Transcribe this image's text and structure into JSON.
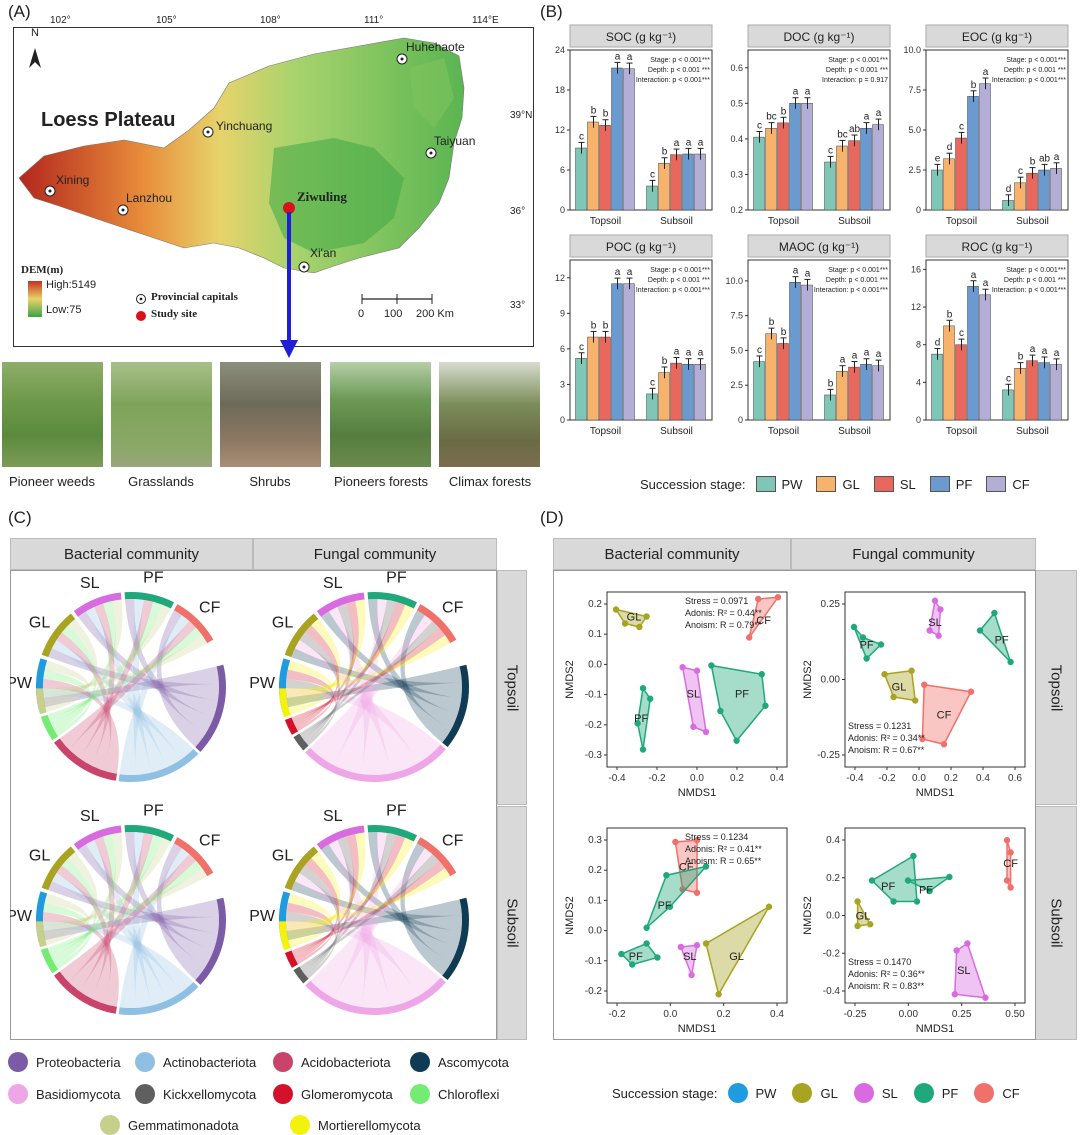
{
  "panels": {
    "a": "(A)",
    "b": "(B)",
    "c": "(C)",
    "d": "(D)"
  },
  "map": {
    "title": "Loess Plateau",
    "lon_ticks": [
      "102°",
      "105°",
      "108°",
      "111°",
      "114°E"
    ],
    "lat_ticks": [
      "39°N",
      "36°",
      "33°"
    ],
    "cities": [
      "Huhehaote",
      "Yinchuang",
      "Taiyuan",
      "Xining",
      "Lanzhou",
      "Xi'an"
    ],
    "study_site": "Ziwuling",
    "dem_title": "DEM(m)",
    "dem_high": "High:5149",
    "dem_low": "Low:75",
    "legend_capitals": "Provincial capitals",
    "legend_site": "Study site",
    "scale": [
      "0",
      "100",
      "200 Km"
    ],
    "north": "N"
  },
  "photos": [
    "Pioneer weeds",
    "Grasslands",
    "Shrubs",
    "Pioneers forests",
    "Climax forests"
  ],
  "colors": {
    "PW": "#7fc6b6",
    "GL": "#f7b36b",
    "SL": "#e8685d",
    "PF": "#6b9ad0",
    "CF": "#b3aed6"
  },
  "chart_data": [
    {
      "type": "bar",
      "title": "SOC (g kg⁻¹)",
      "categories": [
        "Topsoil",
        "Subsoil"
      ],
      "ylim": [
        0,
        24
      ],
      "yticks": [
        "0",
        "6",
        "12",
        "18",
        "24"
      ],
      "series": [
        {
          "name": "PW",
          "values": [
            9.3,
            3.6
          ]
        },
        {
          "name": "GL",
          "values": [
            13.2,
            7.0
          ]
        },
        {
          "name": "SL",
          "values": [
            12.7,
            8.3
          ]
        },
        {
          "name": "PF",
          "values": [
            21.3,
            8.4
          ]
        },
        {
          "name": "CF",
          "values": [
            21.2,
            8.4
          ]
        }
      ],
      "letters": [
        [
          "c",
          "b",
          "b",
          "a",
          "a"
        ],
        [
          "c",
          "b",
          "a",
          "a",
          "a"
        ]
      ],
      "stats": [
        "Stage: p < 0.001***",
        "Depth: p < 0.001 ***",
        "Interaction: p < 0.001***"
      ]
    },
    {
      "type": "bar",
      "title": "DOC (g kg⁻¹)",
      "categories": [
        "Topsoil",
        "Subsoil"
      ],
      "ylim": [
        0.2,
        0.65
      ],
      "yticks": [
        "0.2",
        "0.3",
        "0.4",
        "0.5",
        "0.6"
      ],
      "series": [
        {
          "name": "PW",
          "values": [
            0.405,
            0.335
          ]
        },
        {
          "name": "GL",
          "values": [
            0.43,
            0.38
          ]
        },
        {
          "name": "SL",
          "values": [
            0.445,
            0.395
          ]
        },
        {
          "name": "PF",
          "values": [
            0.5,
            0.43
          ]
        },
        {
          "name": "CF",
          "values": [
            0.5,
            0.44
          ]
        }
      ],
      "letters": [
        [
          "c",
          "bc",
          "b",
          "a",
          "a"
        ],
        [
          "c",
          "bc",
          "ab",
          "a",
          "a"
        ]
      ],
      "stats": [
        "Stage: p < 0.001***",
        "Depth: p < 0.001 ***",
        "Interaction: p = 0.917"
      ]
    },
    {
      "type": "bar",
      "title": "EOC (g kg⁻¹)",
      "categories": [
        "Topsoil",
        "Subsoil"
      ],
      "ylim": [
        0,
        10
      ],
      "yticks": [
        "0",
        "2.5",
        "5.0",
        "7.5",
        "10.0"
      ],
      "series": [
        {
          "name": "PW",
          "values": [
            2.5,
            0.6
          ]
        },
        {
          "name": "GL",
          "values": [
            3.2,
            1.7
          ]
        },
        {
          "name": "SL",
          "values": [
            4.5,
            2.3
          ]
        },
        {
          "name": "PF",
          "values": [
            7.1,
            2.5
          ]
        },
        {
          "name": "CF",
          "values": [
            7.9,
            2.6
          ]
        }
      ],
      "letters": [
        [
          "e",
          "d",
          "c",
          "b",
          "a"
        ],
        [
          "d",
          "c",
          "b",
          "ab",
          "a"
        ]
      ],
      "stats": [
        "Stage: p < 0.001***",
        "Depth: p < 0.001 ***",
        "Interaction: p < 0.001***"
      ]
    },
    {
      "type": "bar",
      "title": "POC (g kg⁻¹)",
      "categories": [
        "Topsoil",
        "Subsoil"
      ],
      "ylim": [
        0,
        13.5
      ],
      "yticks": [
        "0",
        "3",
        "6",
        "9",
        "12"
      ],
      "series": [
        {
          "name": "PW",
          "values": [
            5.2,
            2.2
          ]
        },
        {
          "name": "GL",
          "values": [
            7.0,
            4.0
          ]
        },
        {
          "name": "SL",
          "values": [
            7.0,
            4.8
          ]
        },
        {
          "name": "PF",
          "values": [
            11.5,
            4.7
          ]
        },
        {
          "name": "CF",
          "values": [
            11.5,
            4.7
          ]
        }
      ],
      "letters": [
        [
          "c",
          "b",
          "b",
          "a",
          "a"
        ],
        [
          "c",
          "b",
          "a",
          "a",
          "a"
        ]
      ],
      "stats": [
        "Stage: p < 0.001***",
        "Depth: p < 0.001 ***",
        "Interaction: p < 0.001***"
      ]
    },
    {
      "type": "bar",
      "title": "MAOC (g kg⁻¹)",
      "categories": [
        "Topsoil",
        "Subsoil"
      ],
      "ylim": [
        0,
        11.5
      ],
      "yticks": [
        "0",
        "2.5",
        "5.0",
        "7.5",
        "10.0"
      ],
      "series": [
        {
          "name": "PW",
          "values": [
            4.2,
            1.8
          ]
        },
        {
          "name": "GL",
          "values": [
            6.2,
            3.5
          ]
        },
        {
          "name": "SL",
          "values": [
            5.5,
            3.8
          ]
        },
        {
          "name": "PF",
          "values": [
            9.9,
            4.0
          ]
        },
        {
          "name": "CF",
          "values": [
            9.7,
            3.9
          ]
        }
      ],
      "letters": [
        [
          "c",
          "b",
          "b",
          "a",
          "a"
        ],
        [
          "b",
          "a",
          "a",
          "a",
          "a"
        ]
      ],
      "stats": [
        "Stage: p < 0.001***",
        "Depth: p < 0.001 ***",
        "Interaction: p < 0.001***"
      ]
    },
    {
      "type": "bar",
      "title": "ROC (g kg⁻¹)",
      "categories": [
        "Topsoil",
        "Subsoil"
      ],
      "ylim": [
        0,
        17
      ],
      "yticks": [
        "0",
        "4",
        "8",
        "12",
        "16"
      ],
      "series": [
        {
          "name": "PW",
          "values": [
            7.0,
            3.2
          ]
        },
        {
          "name": "GL",
          "values": [
            10.0,
            5.5
          ]
        },
        {
          "name": "SL",
          "values": [
            8.0,
            6.3
          ]
        },
        {
          "name": "PF",
          "values": [
            14.2,
            6.1
          ]
        },
        {
          "name": "CF",
          "values": [
            13.3,
            5.9
          ]
        }
      ],
      "letters": [
        [
          "d",
          "b",
          "c",
          "a",
          "a"
        ],
        [
          "c",
          "b",
          "a",
          "a",
          "a"
        ]
      ],
      "stats": [
        "Stage: p < 0.001***",
        "Depth: p < 0.001 ***",
        "Interaction: p < 0.001***"
      ]
    }
  ],
  "bar_legend": {
    "title": "Succession stage:",
    "items": [
      "PW",
      "GL",
      "SL",
      "PF",
      "CF"
    ]
  },
  "chord": {
    "cols": [
      "Bacterial community",
      "Fungal community"
    ],
    "rows": [
      "Topsoil",
      "Subsoil"
    ],
    "stages": [
      "PW",
      "GL",
      "SL",
      "PF",
      "CF"
    ],
    "legend": [
      {
        "name": "Proteobacteria",
        "color": "#7b5aa6"
      },
      {
        "name": "Actinobacteriota",
        "color": "#8fc0e3"
      },
      {
        "name": "Acidobacteriota",
        "color": "#c9446b"
      },
      {
        "name": "Ascomycota",
        "color": "#0f3b54"
      },
      {
        "name": "Basidiomycota",
        "color": "#efa6e6"
      },
      {
        "name": "Kickxellomycota",
        "color": "#5f5f5f"
      },
      {
        "name": "Glomeromycota",
        "color": "#d4112b"
      },
      {
        "name": "Chloroflexi",
        "color": "#74ec74"
      },
      {
        "name": "Gemmatimonadota",
        "color": "#c6d08a"
      },
      {
        "name": "Mortierellomycota",
        "color": "#f4f20c"
      }
    ]
  },
  "nmds": {
    "cols": [
      "Bacterial community",
      "Fungal community"
    ],
    "rows": [
      "Topsoil",
      "Subsoil"
    ],
    "xlabel": "NMDS1",
    "ylabel": "NMDS2",
    "plots": [
      {
        "id": "bt",
        "stats": [
          "Stress = 0.0971",
          "Adonis: R² = 0.44**",
          "Anoism: R = 0.79**"
        ],
        "xticks": [
          "-0.4",
          "-0.2",
          "0.0",
          "0.2",
          "0.4"
        ],
        "yticks": [
          "0.2",
          "0.1",
          "0.0",
          "-0.1",
          "-0.2",
          "-0.3"
        ],
        "groups": [
          "GL",
          "CF",
          "SL",
          "PF",
          "PF"
        ]
      },
      {
        "id": "ft",
        "stats": [
          "Stress = 0.1231",
          "Adonis: R² = 0.34**",
          "Anoism: R = 0.67**"
        ],
        "xticks": [
          "-0.4",
          "-0.2",
          "0.0",
          "0.2",
          "0.4",
          "0.6"
        ],
        "yticks": [
          "0.25",
          "0.00",
          "-0.25"
        ],
        "groups": [
          "PF",
          "SL",
          "PF",
          "GL",
          "CF"
        ]
      },
      {
        "id": "bs",
        "stats": [
          "Stress = 0.1234",
          "Adonis: R² = 0.41**",
          "Anoism: R = 0.65**"
        ],
        "xticks": [
          "-0.2",
          "0.0",
          "0.2",
          "0.4"
        ],
        "yticks": [
          "0.3",
          "0.2",
          "0.1",
          "0.0",
          "-0.1",
          "-0.2"
        ],
        "groups": [
          "CF",
          "PF",
          "PF",
          "SL",
          "GL"
        ]
      },
      {
        "id": "fs",
        "stats": [
          "Stress = 0.1470",
          "Adonis: R² = 0.36**",
          "Anoism: R = 0.83**"
        ],
        "xticks": [
          "-0.25",
          "0.00",
          "0.25",
          "0.50"
        ],
        "yticks": [
          "0.4",
          "0.2",
          "0.0",
          "-0.2",
          "-0.4"
        ],
        "groups": [
          "PF",
          "PF",
          "CF",
          "GL",
          "SL"
        ]
      }
    ],
    "legend_title": "Succession stage:",
    "legend": [
      {
        "name": "PW",
        "color": "#1f9be0"
      },
      {
        "name": "GL",
        "color": "#a8a320"
      },
      {
        "name": "SL",
        "color": "#d86be0"
      },
      {
        "name": "PF",
        "color": "#1fa87a"
      },
      {
        "name": "CF",
        "color": "#f0706a"
      }
    ]
  }
}
